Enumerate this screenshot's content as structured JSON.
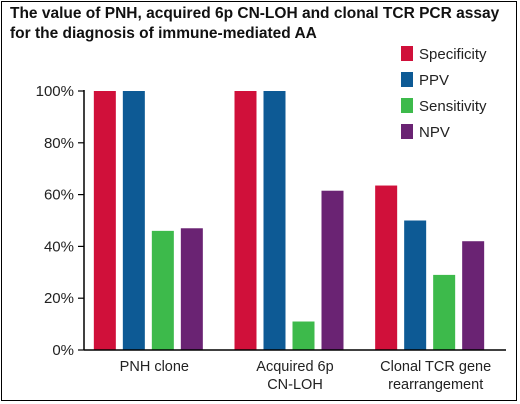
{
  "chart_data": {
    "type": "bar",
    "title": "The value of PNH, acquired 6p CN-LOH and clonal TCR PCR assay for the diagnosis of immune-mediated AA",
    "xlabel": "",
    "ylabel": "",
    "ylim": [
      0,
      100
    ],
    "yticks": [
      "0%",
      "20%",
      "40%",
      "60%",
      "80%",
      "100%"
    ],
    "categories": [
      [
        "PNH clone"
      ],
      [
        "Acquired 6p",
        "CN-LOH"
      ],
      [
        "Clonal TCR gene",
        "rearrangement"
      ]
    ],
    "series": [
      {
        "name": "Specificity",
        "color": "#d0103a",
        "values": [
          100,
          100,
          63.5
        ]
      },
      {
        "name": "PPV",
        "color": "#0d5a95",
        "values": [
          100,
          100,
          50
        ]
      },
      {
        "name": "Sensitivity",
        "color": "#3dba4b",
        "values": [
          46,
          11,
          29
        ]
      },
      {
        "name": "NPV",
        "color": "#6a2373",
        "values": [
          47,
          61.5,
          42
        ]
      }
    ],
    "legend_position": "top-right",
    "grid": false
  }
}
